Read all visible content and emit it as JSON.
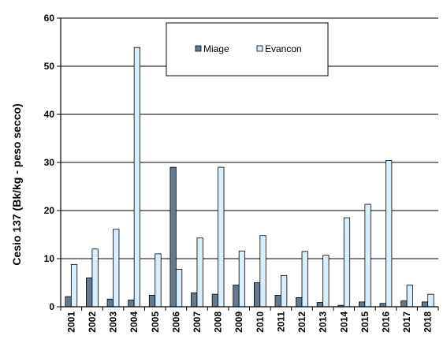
{
  "chart_data": {
    "type": "bar",
    "title": "",
    "xlabel": "",
    "ylabel": "Cesio 137 (Bk/kg - peso secco)",
    "ylim": [
      0,
      60
    ],
    "yticks": [
      0,
      10,
      20,
      30,
      40,
      50,
      60
    ],
    "grid": "horizontal",
    "legend_position": "top-center",
    "categories": [
      "2001",
      "2002",
      "2003",
      "2004",
      "2005",
      "2006",
      "2007",
      "2008",
      "2009",
      "2010",
      "2011",
      "2012",
      "2013",
      "2014",
      "2015",
      "2016",
      "2017",
      "2018"
    ],
    "series": [
      {
        "name": "Miage",
        "color": "#667a8f",
        "values": [
          2.1,
          6.0,
          1.6,
          1.4,
          2.4,
          29.0,
          2.9,
          2.6,
          4.5,
          5.0,
          2.4,
          1.9,
          0.9,
          0.3,
          1.0,
          0.7,
          1.2,
          1.0
        ]
      },
      {
        "name": "Evancon",
        "color": "#d9eefd",
        "values": [
          8.8,
          12.0,
          16.1,
          53.9,
          11.0,
          7.8,
          14.3,
          29.0,
          11.6,
          14.8,
          6.5,
          11.5,
          10.7,
          18.5,
          21.3,
          30.4,
          4.5,
          2.6
        ]
      }
    ]
  }
}
